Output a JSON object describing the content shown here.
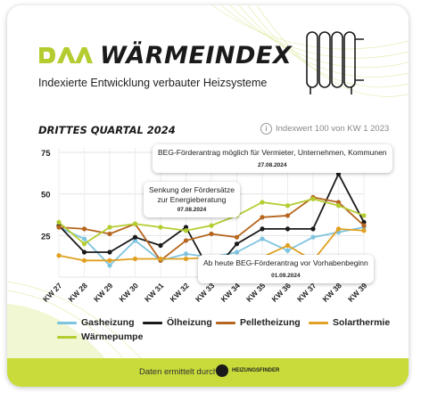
{
  "header": {
    "logo_text": "DAA",
    "title": "WÄRMEINDEX",
    "subtitle": "Indexierte Entwicklung verbauter Heizsysteme"
  },
  "section": {
    "title": "DRITTES QUARTAL 2024",
    "index_note": "Indexwert 100 von KW 1 2023"
  },
  "colors": {
    "accent": "#c8db3a",
    "gas": "#7ec4e0",
    "oel": "#1a1a1a",
    "pellet": "#b5651d",
    "solar": "#e0a020",
    "waerme": "#b5cc30"
  },
  "chart_data": {
    "type": "line",
    "categories": [
      "KW 27",
      "KW 28",
      "KW 29",
      "KW 30",
      "KW 31",
      "KW 32",
      "KW 33",
      "KW 34",
      "KW 35",
      "KW 36",
      "KW 37",
      "KW 38",
      "KW 39"
    ],
    "ylim": [
      0,
      75
    ],
    "yticks": [
      0,
      25,
      50,
      75
    ],
    "series": [
      {
        "name": "Gasheizung",
        "key": "gas",
        "values": [
          30,
          23,
          7,
          22,
          10,
          14,
          12,
          15,
          23,
          16,
          24,
          27,
          30
        ]
      },
      {
        "name": "Ölheizung",
        "key": "oel",
        "values": [
          31,
          15,
          15,
          24,
          19,
          30,
          2,
          20,
          29,
          29,
          29,
          62,
          33
        ]
      },
      {
        "name": "Pelletheizung",
        "key": "pellet",
        "values": [
          30,
          29,
          26,
          32,
          10,
          22,
          26,
          24,
          36,
          37,
          48,
          45,
          31
        ]
      },
      {
        "name": "Solarthermie",
        "key": "solar",
        "values": [
          13,
          10,
          10,
          11,
          11,
          11,
          12,
          12,
          12,
          19,
          10,
          29,
          28
        ]
      },
      {
        "name": "Wärmepumpe",
        "key": "waerme",
        "values": [
          33,
          20,
          30,
          32,
          30,
          28,
          31,
          37,
          45,
          43,
          47,
          43,
          37
        ]
      }
    ],
    "annotations": [
      {
        "text": "BEG-Förderantrag möglich für Vermieter, Unternehmen, Kommunen",
        "date": "27.08.2024"
      },
      {
        "text_line1": "Senkung der Fördersätze",
        "text_line2": "zur Energieberatung",
        "date": "07.08.2024"
      },
      {
        "text": "Ab heute BEG-Förderantrag vor Vorhabenbeginn",
        "date": "01.09.2024"
      }
    ]
  },
  "footer": {
    "text": "Daten ermittelt durch",
    "brand": "HEIZUNGSFINDER"
  }
}
